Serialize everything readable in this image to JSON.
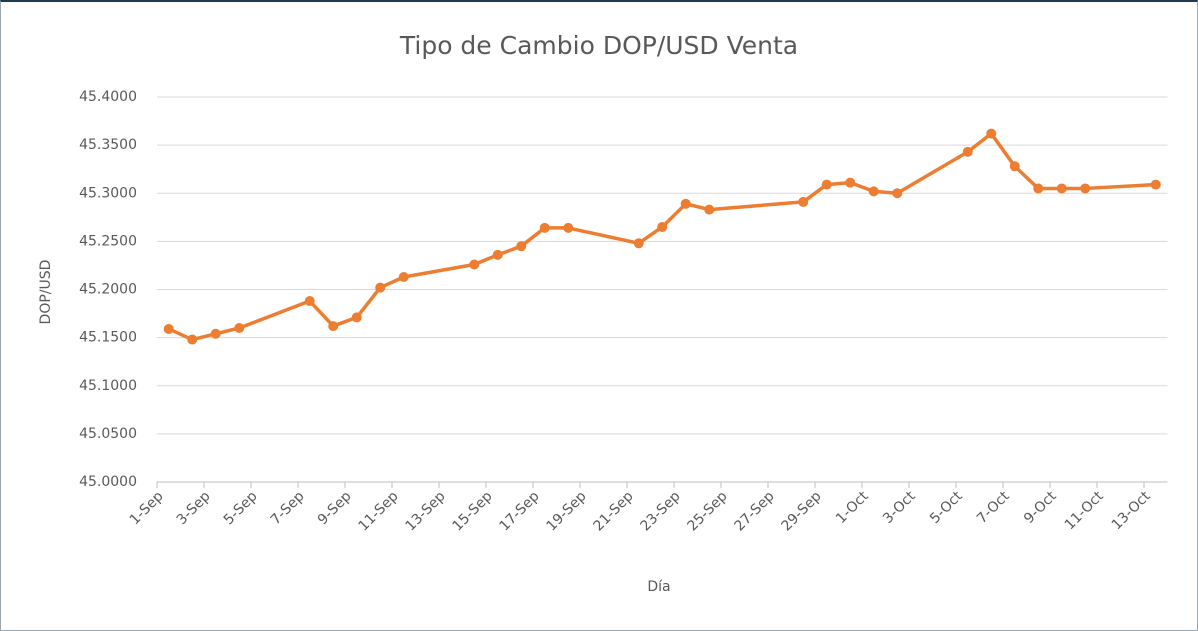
{
  "chart_data": {
    "type": "line",
    "title": "Tipo de Cambio DOP/USD Venta",
    "x_label": "Día",
    "y_label": "DOP/USD",
    "x": [
      "1-Sep",
      "2-Sep",
      "3-Sep",
      "4-Sep",
      "7-Sep",
      "8-Sep",
      "9-Sep",
      "10-Sep",
      "11-Sep",
      "14-Sep",
      "15-Sep",
      "16-Sep",
      "17-Sep",
      "18-Sep",
      "21-Sep",
      "22-Sep",
      "23-Sep",
      "24-Sep",
      "28-Sep",
      "29-Sep",
      "30-Sep",
      "1-Oct",
      "2-Oct",
      "5-Oct",
      "6-Oct",
      "7-Oct",
      "8-Oct",
      "9-Oct",
      "10-Oct",
      "13-Oct"
    ],
    "series": [
      {
        "name": "DOP/USD Venta",
        "color": "#ed7d31",
        "values": [
          45.159,
          45.148,
          45.154,
          45.16,
          45.188,
          45.162,
          45.171,
          45.202,
          45.213,
          45.226,
          45.236,
          45.245,
          45.264,
          45.264,
          45.248,
          45.265,
          45.289,
          45.283,
          45.291,
          45.309,
          45.311,
          45.302,
          45.3,
          45.343,
          45.362,
          45.328,
          45.305,
          45.305,
          45.305,
          45.309
        ]
      }
    ],
    "xticks": [
      "1-Sep",
      "3-Sep",
      "5-Sep",
      "7-Sep",
      "9-Sep",
      "11-Sep",
      "13-Sep",
      "15-Sep",
      "17-Sep",
      "19-Sep",
      "21-Sep",
      "23-Sep",
      "25-Sep",
      "27-Sep",
      "29-Sep",
      "1-Oct",
      "3-Oct",
      "5-Oct",
      "7-Oct",
      "9-Oct",
      "11-Oct",
      "13-Oct"
    ],
    "ylim": [
      45.0,
      45.4
    ],
    "yticks": [
      {
        "value": 45.0,
        "label": "45.0000"
      },
      {
        "value": 45.05,
        "label": "45.0500"
      },
      {
        "value": 45.1,
        "label": "45.1000"
      },
      {
        "value": 45.15,
        "label": "45.1500"
      },
      {
        "value": 45.2,
        "label": "45.2000"
      },
      {
        "value": 45.25,
        "label": "45.2500"
      },
      {
        "value": 45.3,
        "label": "45.3000"
      },
      {
        "value": 45.35,
        "label": "45.3500"
      },
      {
        "value": 45.4,
        "label": "45.4000"
      }
    ],
    "grid": true
  }
}
